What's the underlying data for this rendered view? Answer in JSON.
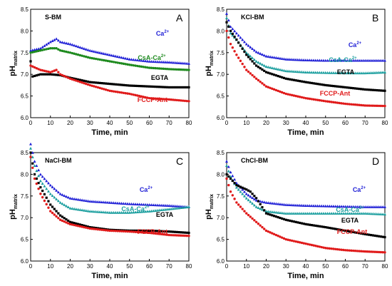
{
  "colors": {
    "Ca": "#1f1fd6",
    "CsA": "#1e8a1e",
    "CsA_teal": "#1a9e9e",
    "EGTA": "#000000",
    "FCCP": "#e01a1a"
  },
  "chart_data": [
    {
      "type": "scatter",
      "title": "S-BM",
      "panel_letter": "A",
      "xlabel": "Time, min",
      "ylabel_main": "pH",
      "ylabel_sub": "matrix",
      "xlim": [
        0,
        80
      ],
      "ylim": [
        6.0,
        8.5
      ],
      "xticks": [
        "0",
        "10",
        "20",
        "30",
        "40",
        "50",
        "60",
        "70",
        "80"
      ],
      "yticks": [
        "6.0",
        "6.5",
        "7.0",
        "7.5",
        "8.0",
        "8.5"
      ],
      "series": [
        {
          "name": "Ca",
          "label_text": "Ca",
          "label_sup": "2+",
          "color_key": "Ca",
          "marker": "triangle",
          "x": [
            0,
            5,
            10,
            13,
            15,
            20,
            30,
            40,
            50,
            60,
            70,
            80
          ],
          "y": [
            7.55,
            7.6,
            7.75,
            7.82,
            7.75,
            7.7,
            7.55,
            7.45,
            7.35,
            7.3,
            7.28,
            7.25
          ]
        },
        {
          "name": "CsA-Ca",
          "label_text": "CsA-Ca",
          "label_sup": "2+",
          "color_key": "CsA",
          "marker": "circle",
          "x": [
            0,
            5,
            10,
            13,
            15,
            20,
            30,
            40,
            50,
            60,
            70,
            80
          ],
          "y": [
            7.5,
            7.55,
            7.6,
            7.6,
            7.55,
            7.5,
            7.38,
            7.3,
            7.22,
            7.15,
            7.12,
            7.1
          ]
        },
        {
          "name": "EGTA",
          "label_text": "EGTA",
          "label_sup": "",
          "color_key": "EGTA",
          "marker": "square",
          "x": [
            0,
            1,
            5,
            10,
            15,
            20,
            30,
            40,
            50,
            60,
            70,
            80
          ],
          "y": [
            7.3,
            6.95,
            7.0,
            7.0,
            6.98,
            6.92,
            6.82,
            6.78,
            6.74,
            6.72,
            6.7,
            6.7
          ]
        },
        {
          "name": "FCCP-Ant",
          "label_text": "FCCP-Ant",
          "label_sup": "",
          "color_key": "FCCP",
          "marker": "circle",
          "x": [
            0,
            5,
            10,
            13,
            15,
            20,
            30,
            40,
            50,
            60,
            70,
            80
          ],
          "y": [
            7.2,
            7.1,
            7.05,
            7.1,
            7.0,
            6.9,
            6.75,
            6.62,
            6.55,
            6.45,
            6.42,
            6.38
          ]
        }
      ]
    },
    {
      "type": "scatter",
      "title": "KCl-BM",
      "panel_letter": "B",
      "xlabel": "Time, min",
      "ylabel_main": "pH",
      "ylabel_sub": "matrix",
      "xlim": [
        0,
        80
      ],
      "ylim": [
        6.0,
        8.5
      ],
      "xticks": [
        "0",
        "10",
        "20",
        "30",
        "40",
        "50",
        "60",
        "70",
        "80"
      ],
      "yticks": [
        "6.0",
        "6.5",
        "7.0",
        "7.5",
        "8.0",
        "8.5"
      ],
      "series": [
        {
          "name": "Ca",
          "label_text": "Ca",
          "label_sup": "2+",
          "color_key": "Ca",
          "marker": "triangle",
          "x": [
            0,
            2,
            5,
            10,
            15,
            20,
            30,
            40,
            50,
            60,
            70,
            80
          ],
          "y": [
            8.4,
            8.1,
            7.95,
            7.7,
            7.52,
            7.42,
            7.35,
            7.33,
            7.32,
            7.32,
            7.32,
            7.32
          ]
        },
        {
          "name": "CsA-Ca",
          "label_text": "CsA-Ca",
          "label_sup": "2+",
          "color_key": "CsA_teal",
          "marker": "triangle",
          "x": [
            0,
            2,
            5,
            10,
            15,
            20,
            30,
            40,
            50,
            60,
            70,
            80
          ],
          "y": [
            8.3,
            7.95,
            7.8,
            7.5,
            7.3,
            7.18,
            7.08,
            7.05,
            7.04,
            7.03,
            7.03,
            7.05
          ]
        },
        {
          "name": "EGTA",
          "label_text": "EGTA",
          "label_sup": "",
          "color_key": "EGTA",
          "marker": "square",
          "x": [
            0,
            2,
            5,
            10,
            15,
            20,
            30,
            40,
            50,
            60,
            70,
            80
          ],
          "y": [
            8.2,
            8.0,
            7.8,
            7.45,
            7.2,
            7.05,
            6.9,
            6.82,
            6.75,
            6.7,
            6.65,
            6.62
          ]
        },
        {
          "name": "FCCP-Ant",
          "label_text": "FCCP-Ant",
          "label_sup": "",
          "color_key": "FCCP",
          "marker": "circle",
          "x": [
            0,
            2,
            5,
            10,
            15,
            20,
            30,
            40,
            50,
            60,
            70,
            80
          ],
          "y": [
            8.0,
            7.7,
            7.45,
            7.1,
            6.9,
            6.72,
            6.55,
            6.45,
            6.38,
            6.32,
            6.28,
            6.27
          ]
        }
      ]
    },
    {
      "type": "scatter",
      "title": "NaCl-BM",
      "panel_letter": "C",
      "xlabel": "Time, min",
      "ylabel_main": "pH",
      "ylabel_sub": "matrix",
      "xlim": [
        0,
        80
      ],
      "ylim": [
        6.0,
        8.5
      ],
      "xticks": [
        "0",
        "10",
        "20",
        "30",
        "40",
        "50",
        "60",
        "70",
        "80"
      ],
      "yticks": [
        "6.0",
        "6.5",
        "7.0",
        "7.5",
        "8.0",
        "8.5"
      ],
      "series": [
        {
          "name": "Ca",
          "label_text": "Ca",
          "label_sup": "2+",
          "color_key": "Ca",
          "marker": "triangle",
          "x": [
            0,
            2,
            5,
            10,
            15,
            20,
            30,
            40,
            50,
            60,
            70,
            80
          ],
          "y": [
            8.7,
            8.3,
            8.0,
            7.75,
            7.55,
            7.45,
            7.38,
            7.35,
            7.32,
            7.3,
            7.28,
            7.25
          ]
        },
        {
          "name": "CsA-Ca",
          "label_text": "CsA-Ca",
          "label_sup": "2+",
          "color_key": "CsA_teal",
          "marker": "triangle",
          "x": [
            0,
            2,
            5,
            10,
            15,
            20,
            30,
            40,
            50,
            60,
            70,
            80
          ],
          "y": [
            8.6,
            8.2,
            7.85,
            7.55,
            7.35,
            7.22,
            7.15,
            7.12,
            7.12,
            7.15,
            7.2,
            7.25
          ]
        },
        {
          "name": "EGTA",
          "label_text": "EGTA",
          "label_sup": "",
          "color_key": "EGTA",
          "marker": "square",
          "x": [
            0,
            2,
            5,
            10,
            15,
            20,
            30,
            40,
            50,
            60,
            70,
            80
          ],
          "y": [
            8.5,
            8.0,
            7.7,
            7.3,
            7.05,
            6.9,
            6.78,
            6.72,
            6.7,
            6.7,
            6.68,
            6.65
          ]
        },
        {
          "name": "FCCP-Ant",
          "label_text": "FCCP-Ant",
          "label_sup": "",
          "color_key": "FCCP",
          "marker": "circle",
          "x": [
            0,
            2,
            5,
            10,
            15,
            20,
            30,
            40,
            50,
            60,
            70,
            80
          ],
          "y": [
            8.4,
            7.9,
            7.55,
            7.15,
            6.95,
            6.85,
            6.75,
            6.7,
            6.68,
            6.65,
            6.6,
            6.58
          ]
        }
      ]
    },
    {
      "type": "scatter",
      "title": "ChCl-BM",
      "panel_letter": "D",
      "xlabel": "Time, min",
      "ylabel_main": "pH",
      "ylabel_sub": "matrix",
      "xlim": [
        0,
        80
      ],
      "ylim": [
        6.0,
        8.5
      ],
      "xticks": [
        "0",
        "10",
        "20",
        "30",
        "40",
        "50",
        "60",
        "70",
        "80"
      ],
      "yticks": [
        "6.0",
        "6.5",
        "7.0",
        "7.5",
        "8.0",
        "8.5"
      ],
      "series": [
        {
          "name": "Ca",
          "label_text": "Ca",
          "label_sup": "2+",
          "color_key": "Ca",
          "marker": "triangle",
          "x": [
            0,
            2,
            5,
            10,
            15,
            20,
            30,
            40,
            50,
            60,
            70,
            80
          ],
          "y": [
            8.3,
            8.05,
            7.8,
            7.55,
            7.4,
            7.35,
            7.3,
            7.28,
            7.27,
            7.26,
            7.25,
            7.25
          ]
        },
        {
          "name": "CsA-Ca",
          "label_text": "CsA-Ca",
          "label_sup": "2+",
          "color_key": "CsA_teal",
          "marker": "triangle",
          "x": [
            0,
            2,
            5,
            10,
            15,
            20,
            30,
            40,
            50,
            60,
            70,
            80
          ],
          "y": [
            8.2,
            7.95,
            7.7,
            7.45,
            7.25,
            7.15,
            7.1,
            7.1,
            7.1,
            7.1,
            7.1,
            7.08
          ]
        },
        {
          "name": "EGTA",
          "label_text": "EGTA",
          "label_sup": "",
          "color_key": "EGTA",
          "marker": "square",
          "x": [
            0,
            2,
            5,
            10,
            12,
            15,
            20,
            30,
            40,
            50,
            60,
            70,
            80
          ],
          "y": [
            8.0,
            7.9,
            7.75,
            7.65,
            7.6,
            7.45,
            7.1,
            6.95,
            6.85,
            6.78,
            6.7,
            6.62,
            6.55
          ]
        },
        {
          "name": "FCCP-Ant",
          "label_text": "FCCP-Ant",
          "label_sup": "",
          "color_key": "FCCP",
          "marker": "circle",
          "x": [
            0,
            2,
            5,
            10,
            15,
            20,
            30,
            40,
            50,
            60,
            70,
            80
          ],
          "y": [
            7.9,
            7.6,
            7.35,
            7.1,
            6.9,
            6.7,
            6.5,
            6.4,
            6.3,
            6.25,
            6.22,
            6.2
          ]
        }
      ]
    }
  ]
}
